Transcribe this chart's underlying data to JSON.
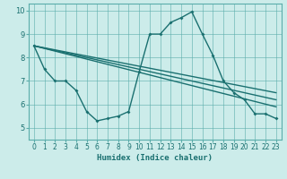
{
  "xlabel": "Humidex (Indice chaleur)",
  "ylabel": "",
  "xlim": [
    -0.5,
    23.5
  ],
  "ylim": [
    4.5,
    10.3
  ],
  "yticks": [
    5,
    6,
    7,
    8,
    9,
    10
  ],
  "xticks": [
    0,
    1,
    2,
    3,
    4,
    5,
    6,
    7,
    8,
    9,
    10,
    11,
    12,
    13,
    14,
    15,
    16,
    17,
    18,
    19,
    20,
    21,
    22,
    23
  ],
  "background_color": "#ccecea",
  "grid_color": "#5aadaa",
  "line_color": "#1a7070",
  "line_width": 1.0,
  "marker_size": 2.0,
  "main_curve": {
    "x": [
      0,
      1,
      2,
      3,
      4,
      5,
      6,
      7,
      8,
      9,
      10,
      11,
      12,
      13,
      14,
      15,
      16,
      17,
      18,
      19,
      20,
      21,
      22,
      23
    ],
    "y": [
      8.5,
      7.5,
      7.0,
      7.0,
      6.6,
      5.7,
      5.3,
      5.4,
      5.5,
      5.7,
      7.4,
      9.0,
      9.0,
      9.5,
      9.7,
      9.95,
      9.0,
      8.1,
      7.0,
      6.5,
      6.2,
      5.6,
      5.6,
      5.4
    ]
  },
  "straight_lines": [
    {
      "x": [
        0,
        23
      ],
      "y": [
        8.5,
        6.5
      ]
    },
    {
      "x": [
        0,
        23
      ],
      "y": [
        8.5,
        5.9
      ]
    },
    {
      "x": [
        0,
        23
      ],
      "y": [
        8.5,
        6.2
      ]
    }
  ]
}
